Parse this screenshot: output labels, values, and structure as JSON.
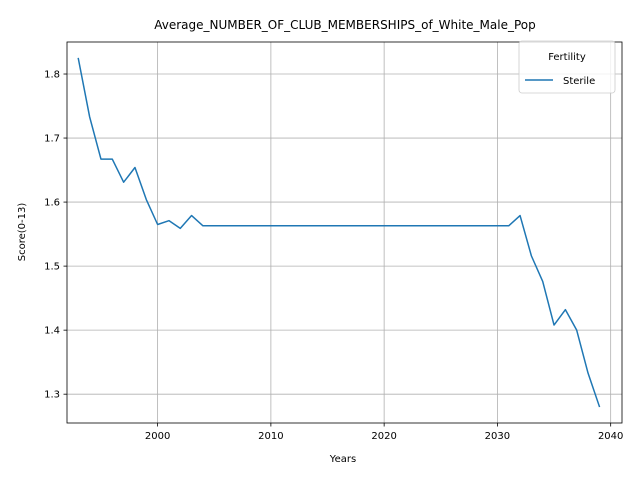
{
  "chart_data": {
    "type": "line",
    "title": "Average_NUMBER_OF_CLUB_MEMBERSHIPS_of_White_Male_Pop",
    "xlabel": "Years",
    "ylabel": "Score(0-13)",
    "xlim": [
      1992,
      2041
    ],
    "ylim": [
      1.255,
      1.85
    ],
    "xticks": [
      2000,
      2010,
      2020,
      2030,
      2040
    ],
    "yticks": [
      1.3,
      1.4,
      1.5,
      1.6,
      1.7,
      1.8
    ],
    "grid": true,
    "legend": {
      "title": "Fertility",
      "placement": "top-right"
    },
    "series": [
      {
        "name": "Sterile",
        "color": "#1f77b4",
        "x": [
          1993,
          1994,
          1995,
          1996,
          1997,
          1998,
          1999,
          2000,
          2001,
          2002,
          2003,
          2004,
          2005,
          2006,
          2007,
          2008,
          2009,
          2010,
          2011,
          2012,
          2013,
          2014,
          2015,
          2016,
          2017,
          2018,
          2019,
          2020,
          2021,
          2022,
          2023,
          2024,
          2025,
          2026,
          2027,
          2028,
          2029,
          2030,
          2031,
          2032,
          2033,
          2034,
          2035,
          2036,
          2037,
          2038,
          2039
        ],
        "y": [
          1.824,
          1.733,
          1.667,
          1.667,
          1.631,
          1.654,
          1.604,
          1.565,
          1.571,
          1.559,
          1.579,
          1.563,
          1.563,
          1.563,
          1.563,
          1.563,
          1.563,
          1.563,
          1.563,
          1.563,
          1.563,
          1.563,
          1.563,
          1.563,
          1.563,
          1.563,
          1.563,
          1.563,
          1.563,
          1.563,
          1.563,
          1.563,
          1.563,
          1.563,
          1.563,
          1.563,
          1.563,
          1.563,
          1.563,
          1.579,
          1.516,
          1.476,
          1.408,
          1.432,
          1.4,
          1.333,
          1.281
        ]
      }
    ]
  }
}
